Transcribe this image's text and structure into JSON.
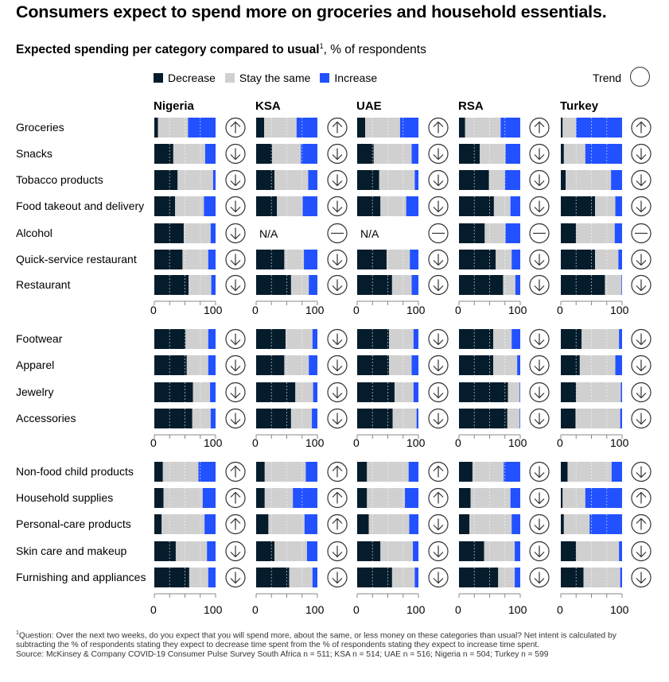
{
  "title": "Consumers expect to spend more on groceries and household essentials.",
  "subtitle_bold": "Expected spending per category compared to usual",
  "subtitle_sup": "1",
  "subtitle_rest": ", % of respondents",
  "legend": [
    {
      "label": "Decrease",
      "color": "#051c2c"
    },
    {
      "label": "Stay the same",
      "color": "#d0d0d0"
    },
    {
      "label": "Increase",
      "color": "#2251ff"
    }
  ],
  "trend_label": "Trend",
  "countries": [
    "Nigeria",
    "KSA",
    "UAE",
    "RSA",
    "Turkey"
  ],
  "axis_ticks": [
    "0",
    "100"
  ],
  "na_label": "N/A",
  "chart_data": {
    "type": "bar",
    "stacked": true,
    "horizontal": true,
    "xlim": [
      0,
      100
    ],
    "series_order": [
      "Decrease",
      "Stay the same",
      "Increase"
    ],
    "groups": [
      {
        "rows": [
          {
            "category": "Groceries",
            "values": [
              [
                6,
                49,
                45
              ],
              [
                13,
                53,
                34
              ],
              [
                13,
                57,
                30
              ],
              [
                10,
                58,
                32
              ],
              [
                3,
                22,
                75
              ]
            ],
            "trend": [
              "up",
              "up",
              "up",
              "up",
              "up"
            ]
          },
          {
            "category": "Snacks",
            "values": [
              [
                31,
                52,
                17
              ],
              [
                26,
                47,
                27
              ],
              [
                27,
                62,
                11
              ],
              [
                34,
                42,
                24
              ],
              [
                5,
                35,
                60
              ]
            ],
            "trend": [
              "down",
              "down",
              "down",
              "down",
              "down"
            ]
          },
          {
            "category": "Tobacco products",
            "values": [
              [
                38,
                58,
                4
              ],
              [
                30,
                55,
                15
              ],
              [
                36,
                58,
                6
              ],
              [
                49,
                26,
                25
              ],
              [
                8,
                74,
                18
              ]
            ],
            "trend": [
              "down",
              "down",
              "down",
              "down",
              "down"
            ]
          },
          {
            "category": "Food takeout and delivery",
            "values": [
              [
                34,
                47,
                19
              ],
              [
                34,
                42,
                24
              ],
              [
                38,
                42,
                20
              ],
              [
                57,
                27,
                16
              ],
              [
                56,
                33,
                11
              ]
            ],
            "trend": [
              "down",
              "down",
              "down",
              "down",
              "down"
            ]
          },
          {
            "category": "Alcohol",
            "values": [
              [
                48,
                44,
                8
              ],
              null,
              null,
              [
                42,
                34,
                24
              ],
              [
                25,
                63,
                12
              ]
            ],
            "trend": [
              "down",
              "none",
              "none",
              "none",
              "none"
            ]
          },
          {
            "category": "Quick-service restaurant",
            "values": [
              [
                46,
                42,
                12
              ],
              [
                46,
                32,
                22
              ],
              [
                48,
                38,
                14
              ],
              [
                60,
                26,
                14
              ],
              [
                56,
                38,
                6
              ]
            ],
            "trend": [
              "down",
              "down",
              "down",
              "down",
              "down"
            ]
          },
          {
            "category": "Restaurant",
            "values": [
              [
                56,
                37,
                7
              ],
              [
                57,
                29,
                14
              ],
              [
                57,
                32,
                11
              ],
              [
                72,
                20,
                8
              ],
              [
                72,
                27,
                1
              ]
            ],
            "trend": [
              "down",
              "down",
              "down",
              "down",
              "down"
            ]
          }
        ]
      },
      {
        "rows": [
          {
            "category": "Footwear",
            "values": [
              [
                51,
                37,
                12
              ],
              [
                48,
                44,
                8
              ],
              [
                52,
                40,
                8
              ],
              [
                56,
                30,
                14
              ],
              [
                34,
                61,
                5
              ]
            ],
            "trend": [
              "down",
              "down",
              "down",
              "down",
              "down"
            ]
          },
          {
            "category": "Apparel",
            "values": [
              [
                53,
                35,
                12
              ],
              [
                46,
                40,
                14
              ],
              [
                52,
                37,
                11
              ],
              [
                56,
                39,
                5
              ],
              [
                31,
                58,
                11
              ]
            ],
            "trend": [
              "down",
              "down",
              "down",
              "down",
              "down"
            ]
          },
          {
            "category": "Jewelry",
            "values": [
              [
                63,
                28,
                9
              ],
              [
                64,
                29,
                7
              ],
              [
                61,
                31,
                8
              ],
              [
                80,
                19,
                1
              ],
              [
                25,
                73,
                2
              ]
            ],
            "trend": [
              "down",
              "down",
              "down",
              "down",
              "down"
            ]
          },
          {
            "category": "Accessories",
            "values": [
              [
                62,
                30,
                8
              ],
              [
                57,
                34,
                9
              ],
              [
                58,
                39,
                3
              ],
              [
                79,
                20,
                1
              ],
              [
                24,
                73,
                3
              ]
            ],
            "trend": [
              "down",
              "down",
              "down",
              "down",
              "down"
            ]
          }
        ]
      },
      {
        "rows": [
          {
            "category": "Non-food child products",
            "values": [
              [
                14,
                58,
                28
              ],
              [
                14,
                67,
                19
              ],
              [
                16,
                68,
                16
              ],
              [
                22,
                51,
                27
              ],
              [
                11,
                72,
                17
              ]
            ],
            "trend": [
              "up",
              "up",
              "up",
              "down",
              "down"
            ]
          },
          {
            "category": "Household supplies",
            "values": [
              [
                15,
                64,
                21
              ],
              [
                14,
                46,
                40
              ],
              [
                16,
                62,
                22
              ],
              [
                19,
                65,
                16
              ],
              [
                3,
                37,
                60
              ]
            ],
            "trend": [
              "up",
              "up",
              "up",
              "down",
              "up"
            ]
          },
          {
            "category": "Personal-care products",
            "values": [
              [
                12,
                70,
                18
              ],
              [
                20,
                59,
                21
              ],
              [
                19,
                66,
                15
              ],
              [
                17,
                69,
                14
              ],
              [
                5,
                42,
                53
              ]
            ],
            "trend": [
              "up",
              "up",
              "down",
              "down",
              "up"
            ]
          },
          {
            "category": "Skin care and makeup",
            "values": [
              [
                35,
                51,
                14
              ],
              [
                30,
                53,
                17
              ],
              [
                38,
                53,
                9
              ],
              [
                41,
                50,
                9
              ],
              [
                25,
                70,
                5
              ]
            ],
            "trend": [
              "down",
              "down",
              "down",
              "down",
              "down"
            ]
          },
          {
            "category": "Furnishing and appliances",
            "values": [
              [
                57,
                31,
                12
              ],
              [
                54,
                38,
                8
              ],
              [
                57,
                37,
                6
              ],
              [
                64,
                27,
                9
              ],
              [
                37,
                60,
                3
              ]
            ],
            "trend": [
              "down",
              "down",
              "down",
              "down",
              "down"
            ]
          }
        ]
      }
    ]
  },
  "footnote_sup": "1",
  "footnote": "Question: Over the next two weeks, do you expect that you will spend more, about the same, or less money on these categories than usual? Net intent is calculated by subtracting the % of respondents stating they expect to decrease time spent from the % of respondents stating they expect to increase time spent.",
  "source": "Source: McKinsey & Company COVID-19 Consumer Pulse Survey South Africa n = 511; KSA n = 514; UAE n = 516; Nigeria n = 504; Turkey n = 599"
}
